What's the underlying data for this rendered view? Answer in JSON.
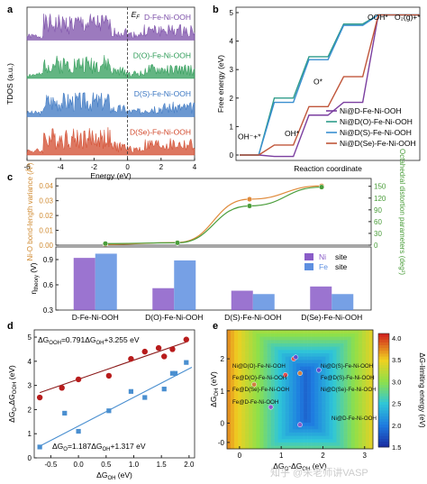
{
  "panel_letters": [
    "a",
    "b",
    "c",
    "d",
    "e"
  ],
  "watermark": "知乎 @朱老师讲VASP",
  "chart_data": [
    {
      "panel": "a",
      "type": "area",
      "ylabel": "TDOS (a.u.)",
      "xlabel": "Energy (eV)",
      "xlim": [
        -6,
        4
      ],
      "xticks": [
        "-6",
        "-4",
        "-2",
        "0",
        "2",
        "4"
      ],
      "fermi_label": "E",
      "fermi_subscript": "F",
      "fermi_level_x": 0,
      "series": [
        {
          "name": "D-Fe-Ni-OOH",
          "color": "#7b4ea8",
          "seed": 1,
          "amp": 0.9
        },
        {
          "name": "D(O)-Fe-Ni-OOH",
          "color": "#2f9c58",
          "seed": 2,
          "amp": 0.8
        },
        {
          "name": "D(S)-Fe-Ni-OOH",
          "color": "#3a76c2",
          "seed": 3,
          "amp": 0.85
        },
        {
          "name": "D(Se)-Fe-Ni-OOH",
          "color": "#d2492c",
          "seed": 4,
          "amp": 0.95
        }
      ]
    },
    {
      "panel": "b",
      "type": "line",
      "ylabel": "Free energy (eV)",
      "xlabel": "Reaction coordinate",
      "ylim": [
        0,
        5
      ],
      "yticks": [
        "0",
        "1",
        "2",
        "3",
        "4",
        "5"
      ],
      "state_labels": [
        "OH⁻+*",
        "OH*",
        "O*",
        "OOH*",
        "O₂(g)+*"
      ],
      "steps": 5,
      "series": [
        {
          "name": "Ni@D-Fe-Ni-OOH",
          "color": "#7b3fa0",
          "values": [
            0,
            -0.05,
            1.4,
            1.85,
            4.92
          ]
        },
        {
          "name": "Ni@D(O)-Fe-Ni-OOH",
          "color": "#2f9c8a",
          "values": [
            0,
            2.0,
            3.45,
            4.6,
            4.92
          ]
        },
        {
          "name": "Ni@D(S)-Fe-Ni-OOH",
          "color": "#3a8fd0",
          "values": [
            0,
            1.85,
            3.35,
            4.55,
            4.92
          ]
        },
        {
          "name": "Ni@D(Se)-Fe-Ni-OOH",
          "color": "#c0563a",
          "values": [
            0,
            0.35,
            1.7,
            2.75,
            4.92
          ]
        }
      ]
    },
    {
      "panel": "c-top",
      "type": "line",
      "ylabel_left": "Ni-O bond-length variance (Å²)",
      "ylabel_right": "Octahedral distortion parameters (deg²)",
      "yticks_left": [
        "0.00",
        "0.01",
        "0.02",
        "0.03",
        "0.04"
      ],
      "yticks_right": [
        "0",
        "30",
        "60",
        "90",
        "120",
        "150"
      ],
      "ylim_left": [
        0,
        0.045
      ],
      "ylim_right": [
        0,
        170
      ],
      "categories": [
        "D-Fe-Ni-OOH",
        "D(O)-Fe-Ni-OOH",
        "D(S)-Fe-Ni-OOH",
        "D(Se)-Fe-Ni-OOH"
      ],
      "series": [
        {
          "name": "Ni-O bond-length variance",
          "axis": "left",
          "color": "#e08a3a",
          "values": [
            0.0005,
            0.0018,
            0.031,
            0.04
          ]
        },
        {
          "name": "Octahedral distortion parameters",
          "axis": "right",
          "color": "#4a9d3a",
          "values": [
            4,
            6,
            100,
            148
          ]
        }
      ]
    },
    {
      "panel": "c-bottom",
      "type": "bar",
      "ylabel": "η",
      "ylabel_sub": "theory",
      "ylabel_unit": "(V)",
      "ylim": [
        0.3,
        1.05
      ],
      "yticks": [
        "0.3",
        "0.6",
        "0.9"
      ],
      "categories": [
        "D-Fe-Ni-OOH",
        "D(O)-Fe-Ni-OOH",
        "D(S)-Fe-Ni-OOH",
        "D(Se)-Fe-Ni-OOH"
      ],
      "series": [
        {
          "name": "Ni",
          "suffix": "site",
          "color": "#8a5cc8",
          "values": [
            0.92,
            0.56,
            0.53,
            0.58
          ]
        },
        {
          "name": "Fe",
          "suffix": "site",
          "color": "#5e8fe0",
          "values": [
            0.97,
            0.89,
            0.49,
            0.49
          ]
        }
      ]
    },
    {
      "panel": "d",
      "type": "scatter",
      "xlabel": "ΔG",
      "xlabel_sub": "OH",
      "xlabel_unit": "(eV)",
      "ylabel": "ΔG",
      "ylabel_sub": "O",
      "ylabel_mid": ",ΔG",
      "ylabel_sub2": "OOH",
      "ylabel_unit": "(eV)",
      "xlim": [
        -0.8,
        2.1
      ],
      "ylim": [
        0,
        5.3
      ],
      "xticks": [
        "-0.5",
        "0.0",
        "0.5",
        "1.0",
        "1.5",
        "2.0"
      ],
      "yticks": [
        "0",
        "1",
        "2",
        "3",
        "4",
        "5"
      ],
      "series": [
        {
          "name": "ΔGOOH",
          "color": "#b81c1c",
          "marker": "circle",
          "x": [
            -0.7,
            -0.3,
            0.0,
            0.55,
            0.95,
            1.2,
            1.45,
            1.55,
            1.7,
            1.95
          ],
          "y": [
            2.5,
            2.9,
            3.25,
            3.4,
            4.1,
            4.4,
            4.55,
            4.2,
            4.5,
            4.9
          ]
        },
        {
          "name": "ΔGO",
          "color": "#4a8fd0",
          "marker": "square",
          "x": [
            -0.7,
            -0.25,
            0.0,
            0.55,
            0.95,
            1.2,
            1.55,
            1.7,
            1.75,
            1.95
          ],
          "y": [
            0.45,
            1.85,
            1.1,
            1.95,
            2.75,
            2.5,
            2.85,
            3.5,
            3.5,
            3.95
          ]
        }
      ],
      "fit_lines": [
        {
          "color": "#8b1a1a",
          "slope": 0.791,
          "intercept": 3.255,
          "x_range": [
            -0.7,
            1.95
          ],
          "label_lhs": "ΔG",
          "label_lhs_sub": "OOH",
          "label_eq": "=0.791ΔG",
          "label_eq_sub": "OH",
          "label_tail": "+3.255 eV"
        },
        {
          "color": "#4a8fd0",
          "slope": 1.187,
          "intercept": 1.317,
          "x_range": [
            -0.7,
            2.05
          ],
          "label_lhs": "ΔG",
          "label_lhs_sub": "O",
          "label_eq": "=1.187ΔG",
          "label_eq_sub": "OH",
          "label_tail": "+1.317 eV"
        }
      ]
    },
    {
      "panel": "e",
      "type": "heatmap",
      "xlabel": "ΔG",
      "xlabel_sub": "O",
      "xlabel_mid": "-ΔG",
      "xlabel_sub2": "OH",
      "xlabel_unit": "(eV)",
      "ylabel": "ΔG",
      "ylabel_sub": "OH",
      "ylabel_unit": "(eV)",
      "colorbar_label": "ΔG-limiting energy (eV)",
      "colorbar_range": [
        1.5,
        4.1
      ],
      "colorbar_ticks": [
        "1.5",
        "2.0",
        "2.5",
        "3.0",
        "3.5",
        "4.0"
      ],
      "xlim": [
        -0.3,
        3.2
      ],
      "ylim": [
        -0.8,
        2.9
      ],
      "xticks": [
        "0",
        "1",
        "2",
        "3"
      ],
      "yticks": [
        "-0",
        "0",
        "1",
        "2"
      ],
      "points": [
        {
          "label": "Ni@D(O)-Fe-Ni-OOH",
          "x": 1.3,
          "y": 2.0,
          "color": "#e05050"
        },
        {
          "label": "Fe@D(O)-Fe-Ni-OOH",
          "x": 1.1,
          "y": 1.5,
          "color": "#e05050"
        },
        {
          "label": "Ni@D(S)-Fe-Ni-OOH",
          "x": 1.35,
          "y": 2.05,
          "color": "#5a4fd0"
        },
        {
          "label": "Fe@D(S)-Fe-Ni-OOH",
          "x": 1.9,
          "y": 1.65,
          "color": "#5a4fd0"
        },
        {
          "label": "Ni@D(Se)-Fe-Ni-OOH",
          "x": 1.45,
          "y": 1.55,
          "color": "#d08040"
        },
        {
          "label": "Fe@D(Se)-Fe-Ni-OOH",
          "x": 0.35,
          "y": 1.2,
          "color": "#d08040"
        },
        {
          "label": "Fe@D-Fe-Ni-OOH",
          "x": 0.75,
          "y": 0.5,
          "color": "#8a5cc8"
        },
        {
          "label": "Ni@D-Fe-Ni-OOH",
          "x": 1.45,
          "y": -0.05,
          "color": "#8a5cc8"
        }
      ]
    }
  ]
}
